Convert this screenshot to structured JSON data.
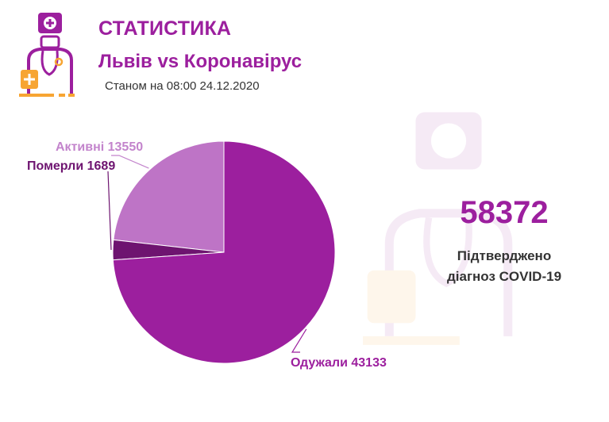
{
  "header": {
    "title": "СТАТИСТИКА",
    "subtitle": "Львів vs Коронавірус",
    "date_line": "Станом на 08:00 24.12.2020"
  },
  "summary": {
    "total": "58372",
    "caption_line1": "Підтверджено",
    "caption_line2": "діагноз COVID-19"
  },
  "colors": {
    "brand": "#9c1f9e",
    "recovered": "#9c1f9e",
    "deceased": "#6e1470",
    "active": "#be74c6",
    "active_label": "#c384cc",
    "accent_orange": "#f7a533"
  },
  "chart_data": {
    "type": "pie",
    "categories": [
      "Активні",
      "Померли",
      "Одужали"
    ],
    "values": [
      13550,
      1689,
      43133
    ],
    "labels": [
      "Активні 13550",
      "Померли 1689",
      "Одужали 43133"
    ]
  }
}
